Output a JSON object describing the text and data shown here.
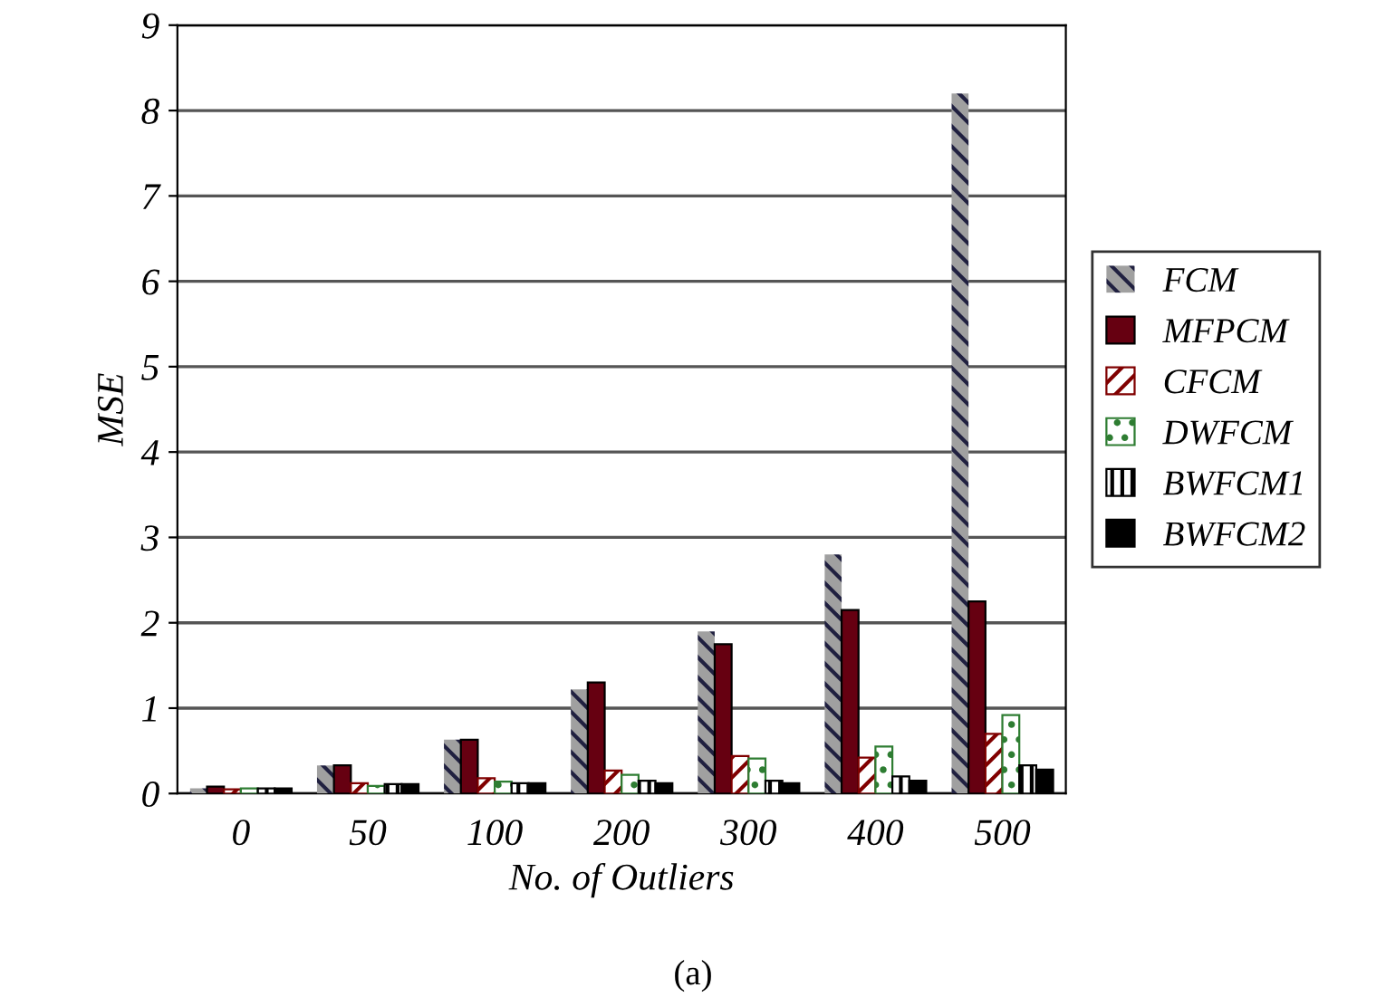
{
  "chart_data": {
    "type": "bar",
    "xlabel": "No. of Outliers",
    "ylabel": "MSE",
    "categories": [
      "0",
      "50",
      "100",
      "200",
      "300",
      "400",
      "500"
    ],
    "series": [
      {
        "name": "FCM",
        "color": "#a0a0a0",
        "values": [
          0.06,
          0.33,
          0.63,
          1.22,
          1.9,
          2.8,
          8.2
        ]
      },
      {
        "name": "MFPCM",
        "color": "#660011",
        "values": [
          0.08,
          0.33,
          0.63,
          1.3,
          1.75,
          2.15,
          2.25
        ]
      },
      {
        "name": "CFCM",
        "color": "#800000",
        "values": [
          0.05,
          0.12,
          0.18,
          0.27,
          0.44,
          0.42,
          0.7
        ]
      },
      {
        "name": "DWFCM",
        "color": "#2e7d32",
        "values": [
          0.06,
          0.09,
          0.14,
          0.22,
          0.41,
          0.55,
          0.92
        ]
      },
      {
        "name": "BWFCM1",
        "color": "#000000",
        "values": [
          0.06,
          0.11,
          0.12,
          0.15,
          0.15,
          0.2,
          0.33
        ]
      },
      {
        "name": "BWFCM2",
        "color": "#000000",
        "values": [
          0.06,
          0.11,
          0.12,
          0.12,
          0.12,
          0.15,
          0.28
        ]
      }
    ],
    "ylim": [
      0,
      9
    ],
    "yticks": [
      0,
      1,
      2,
      3,
      4,
      5,
      6,
      7,
      8,
      9
    ],
    "grid": "y",
    "legend": "right",
    "annotations": [
      "(a)"
    ]
  }
}
